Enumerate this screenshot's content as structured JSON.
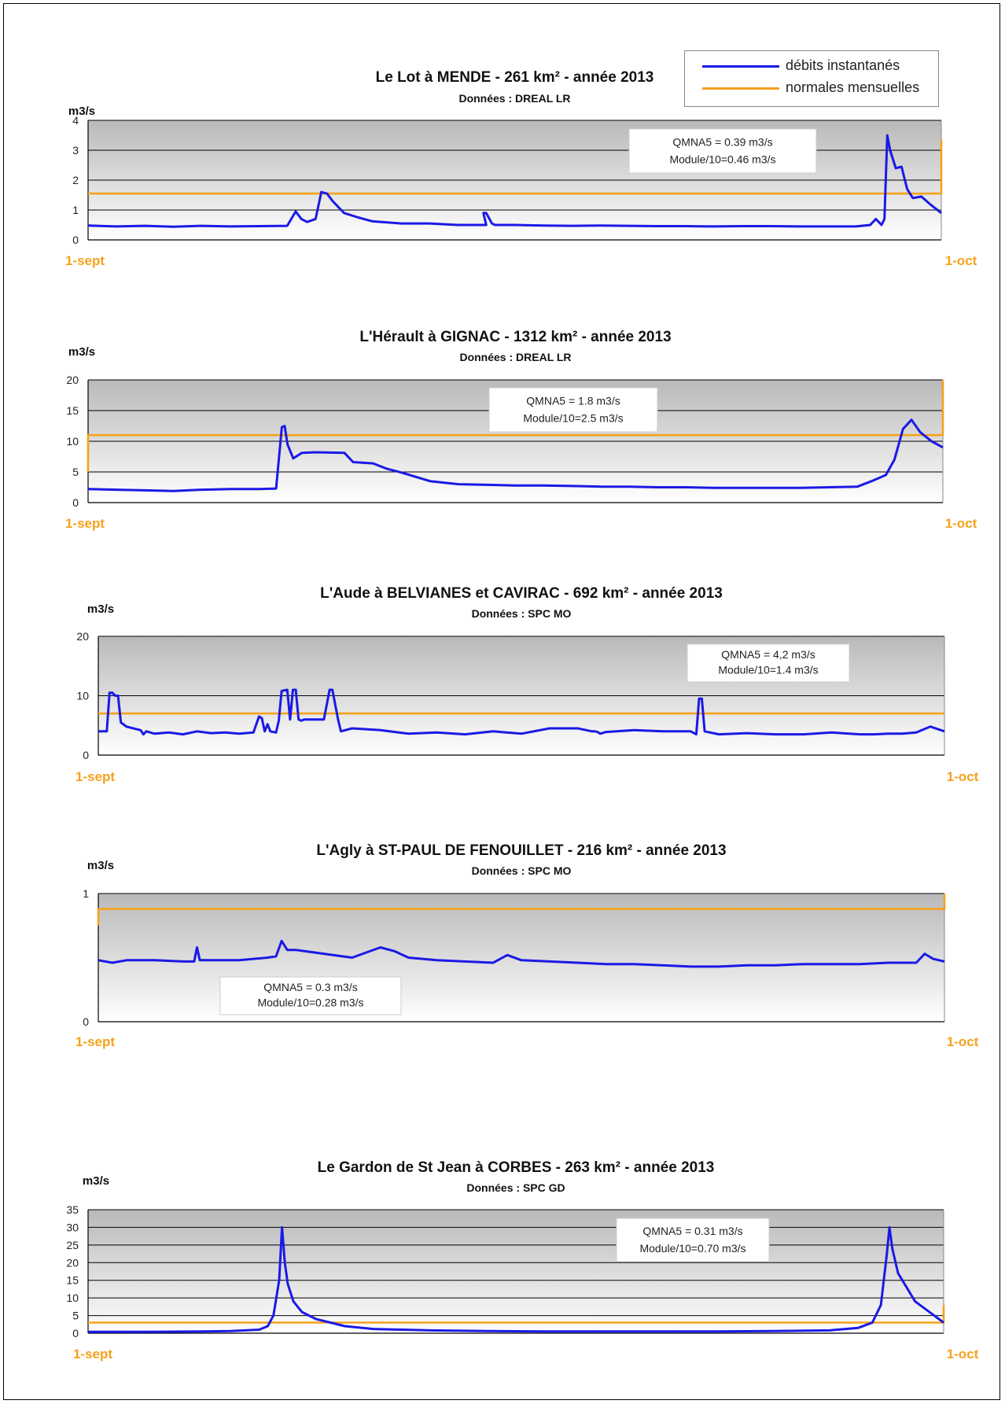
{
  "legend": {
    "items": [
      {
        "label": "débits instantanés",
        "color": "#1a1ae6"
      },
      {
        "label": "normales mensuelles",
        "color": "#f5a11c"
      }
    ]
  },
  "colors": {
    "flow": "#1a1ae6",
    "normal": "#f5a11c",
    "x_label": "#f5a11c",
    "plot_top": "#b9b9b9",
    "plot_bottom": "#ffffff"
  },
  "chart_data": [
    {
      "type": "line",
      "title": "Le Lot à MENDE - 261 km² - année 2013",
      "subtitle": "Données : DREAL LR",
      "ylabel": "m3/s",
      "ylim": [
        0,
        4
      ],
      "yticks": [
        0,
        1,
        2,
        3,
        4
      ],
      "xlim": [
        0,
        30
      ],
      "xtick_labels": [
        "1-sept",
        "1-oct"
      ],
      "annotation": [
        "QMNA5 = 0.39 m3/s",
        "Module/10=0.46 m3/s"
      ],
      "series": [
        {
          "name": "débits instantanés",
          "x": [
            0,
            1,
            2,
            3,
            4,
            5,
            6,
            7,
            7.3,
            7.5,
            7.7,
            8,
            8.2,
            8.4,
            8.6,
            9,
            9.5,
            10,
            11,
            12,
            13,
            14,
            13.9,
            14,
            14.2,
            14.3,
            15,
            16,
            17,
            18,
            19,
            20,
            21,
            22,
            23,
            24,
            25,
            26,
            27,
            27.5,
            27.7,
            27.9,
            28,
            28.1,
            28.2,
            28.4,
            28.6,
            28.8,
            29,
            29.3,
            29.6,
            30
          ],
          "y": [
            0.48,
            0.45,
            0.47,
            0.44,
            0.47,
            0.45,
            0.46,
            0.47,
            0.95,
            0.7,
            0.6,
            0.7,
            1.6,
            1.55,
            1.3,
            0.9,
            0.75,
            0.62,
            0.55,
            0.55,
            0.5,
            0.5,
            0.9,
            0.9,
            0.55,
            0.5,
            0.5,
            0.48,
            0.47,
            0.48,
            0.47,
            0.46,
            0.46,
            0.45,
            0.46,
            0.46,
            0.45,
            0.45,
            0.45,
            0.5,
            0.7,
            0.5,
            0.7,
            3.5,
            3.0,
            2.4,
            2.45,
            1.7,
            1.4,
            1.45,
            1.2,
            0.9
          ]
        },
        {
          "name": "normales mensuelles",
          "x": [
            0,
            30,
            30
          ],
          "y": [
            1.55,
            1.55,
            3.35
          ]
        }
      ]
    },
    {
      "type": "line",
      "title": "L'Hérault à GIGNAC - 1312 km² - année 2013",
      "subtitle": "Données : DREAL LR",
      "ylabel": "m3/s",
      "ylim": [
        0,
        20
      ],
      "yticks": [
        0,
        5,
        10,
        15,
        20
      ],
      "xlim": [
        0,
        30
      ],
      "xtick_labels": [
        "1-sept",
        "1-oct"
      ],
      "annotation": [
        "QMNA5 = 1.8 m3/s",
        "Module/10=2.5  m3/s"
      ],
      "series": [
        {
          "name": "débits instantanés",
          "x": [
            0,
            1,
            2,
            3,
            4,
            5,
            6,
            6.6,
            6.8,
            6.9,
            7,
            7.2,
            7.5,
            8,
            9,
            9.3,
            10,
            10.5,
            11,
            12,
            13,
            14,
            15,
            16,
            17,
            18,
            19,
            20,
            21,
            22,
            23,
            24,
            25,
            26,
            27,
            27.5,
            28,
            28.3,
            28.6,
            28.9,
            29.2,
            29.6,
            30
          ],
          "y": [
            2.2,
            2.1,
            2.0,
            1.9,
            2.1,
            2.2,
            2.2,
            2.3,
            12.3,
            12.5,
            9.5,
            7.2,
            8.1,
            8.2,
            8.1,
            6.6,
            6.4,
            5.5,
            4.9,
            3.5,
            3.0,
            2.9,
            2.8,
            2.8,
            2.7,
            2.6,
            2.6,
            2.5,
            2.5,
            2.4,
            2.4,
            2.4,
            2.4,
            2.5,
            2.6,
            3.5,
            4.5,
            7.0,
            12.0,
            13.5,
            11.5,
            10.0,
            9.0
          ]
        },
        {
          "name": "normales mensuelles",
          "x": [
            0,
            0,
            30,
            30
          ],
          "y": [
            5,
            11,
            11,
            20
          ]
        }
      ]
    },
    {
      "type": "line",
      "title": "L'Aude à BELVIANES et CAVIRAC - 692 km² - année 2013",
      "subtitle": "Données : SPC MO",
      "ylabel": "m3/s",
      "ylim": [
        0,
        20
      ],
      "yticks": [
        0,
        10,
        20
      ],
      "xlim": [
        0,
        30
      ],
      "xtick_labels": [
        "1-sept",
        "1-oct"
      ],
      "annotation": [
        "QMNA5 = 4,2 m3/s",
        "Module/10=1.4 m3/s"
      ],
      "series": [
        {
          "name": "débits instantanés",
          "x": [
            0,
            0.3,
            0.4,
            0.5,
            0.6,
            0.7,
            0.8,
            1,
            1.5,
            1.6,
            1.7,
            2,
            2.5,
            3,
            3.5,
            4,
            4.5,
            5,
            5.5,
            5.7,
            5.8,
            5.9,
            6,
            6.1,
            6.3,
            6.4,
            6.5,
            6.7,
            6.8,
            6.9,
            7,
            7.1,
            7.2,
            7.3,
            7.4,
            8,
            8.2,
            8.3,
            8.5,
            8.6,
            9,
            10,
            11,
            12,
            13,
            14,
            15,
            16,
            17,
            17.5,
            17.6,
            17.7,
            17.8,
            18,
            19,
            20,
            21,
            21.2,
            21.3,
            21.4,
            21.5,
            22,
            23,
            24,
            25,
            26,
            27,
            27.5,
            28,
            28.5,
            29,
            29.5,
            30
          ],
          "y": [
            4,
            4,
            10.5,
            10.5,
            10,
            10,
            5.5,
            4.8,
            4.2,
            3.5,
            4,
            3.6,
            3.8,
            3.5,
            4,
            3.7,
            3.8,
            3.6,
            3.8,
            6.5,
            6.2,
            4,
            5.2,
            4,
            3.8,
            5.8,
            10.8,
            11,
            6,
            11,
            11,
            6,
            5.8,
            6,
            6,
            6,
            11,
            11,
            6,
            4,
            4.5,
            4.2,
            3.6,
            3.8,
            3.5,
            4,
            3.6,
            4.5,
            4.5,
            4,
            4,
            3.9,
            3.6,
            3.9,
            4.2,
            4,
            4,
            3.5,
            9.5,
            9.5,
            4,
            3.5,
            3.7,
            3.5,
            3.5,
            3.8,
            3.5,
            3.5,
            3.6,
            3.6,
            3.8,
            4.8,
            4.0
          ]
        },
        {
          "name": "normales mensuelles",
          "x": [
            0,
            30
          ],
          "y": [
            7,
            7
          ]
        }
      ]
    },
    {
      "type": "line",
      "title": "L'Agly à ST-PAUL DE FENOUILLET - 216 km² - année 2013",
      "subtitle": "Données : SPC MO",
      "ylabel": "m3/s",
      "ylim": [
        0,
        1
      ],
      "yticks": [
        0,
        1
      ],
      "xlim": [
        0,
        30
      ],
      "xtick_labels": [
        "1-sept",
        "1-oct"
      ],
      "annotation": [
        "QMNA5 = 0.3 m3/s",
        "Module/10=0.28 m3/s"
      ],
      "series": [
        {
          "name": "débits instantanés",
          "x": [
            0,
            0.5,
            1,
            2,
            3,
            3.4,
            3.5,
            3.6,
            4,
            5,
            6,
            6.3,
            6.5,
            6.7,
            7,
            8,
            9,
            10,
            10.5,
            11,
            11.5,
            12,
            13,
            14,
            14.5,
            15,
            16,
            17,
            18,
            19,
            20,
            21,
            22,
            23,
            24,
            25,
            26,
            27,
            28,
            29,
            29.3,
            29.6,
            30
          ],
          "y": [
            0.48,
            0.46,
            0.48,
            0.48,
            0.47,
            0.47,
            0.58,
            0.48,
            0.48,
            0.48,
            0.5,
            0.51,
            0.63,
            0.56,
            0.56,
            0.53,
            0.5,
            0.58,
            0.55,
            0.5,
            0.49,
            0.48,
            0.47,
            0.46,
            0.52,
            0.48,
            0.47,
            0.46,
            0.45,
            0.45,
            0.44,
            0.43,
            0.43,
            0.44,
            0.44,
            0.45,
            0.45,
            0.45,
            0.46,
            0.46,
            0.53,
            0.49,
            0.47
          ]
        },
        {
          "name": "normales mensuelles",
          "x": [
            0,
            0,
            30,
            30
          ],
          "y": [
            0.75,
            0.88,
            0.88,
            1
          ]
        }
      ]
    },
    {
      "type": "line",
      "title": "Le Gardon de St Jean à CORBES - 263 km² - année 2013",
      "subtitle": "Données : SPC GD",
      "ylabel": "m3/s",
      "ylim": [
        0,
        35
      ],
      "yticks": [
        0,
        5,
        10,
        15,
        20,
        25,
        30,
        35
      ],
      "xlim": [
        0,
        30
      ],
      "xtick_labels": [
        "1-sept",
        "1-oct"
      ],
      "annotation": [
        "QMNA5 = 0.31 m3/s",
        "Module/10=0.70 m3/s"
      ],
      "series": [
        {
          "name": "débits instantanés",
          "x": [
            0,
            2,
            4,
            5,
            6,
            6.3,
            6.5,
            6.7,
            6.8,
            6.9,
            7,
            7.2,
            7.5,
            8,
            8.5,
            9,
            10,
            12,
            14,
            16,
            18,
            20,
            22,
            24,
            26,
            27,
            27.5,
            27.8,
            28,
            28.1,
            28.2,
            28.4,
            28.7,
            29,
            29.5,
            30
          ],
          "y": [
            0.4,
            0.4,
            0.5,
            0.6,
            1,
            2,
            5,
            15,
            30,
            20,
            14,
            9,
            6,
            4,
            3,
            2,
            1.2,
            0.8,
            0.6,
            0.5,
            0.5,
            0.5,
            0.5,
            0.6,
            0.8,
            1.5,
            3,
            8,
            22,
            30,
            24,
            17,
            13,
            9,
            6,
            3
          ]
        },
        {
          "name": "normales mensuelles",
          "x": [
            0,
            30,
            30
          ],
          "y": [
            3,
            3,
            8
          ]
        }
      ]
    }
  ]
}
